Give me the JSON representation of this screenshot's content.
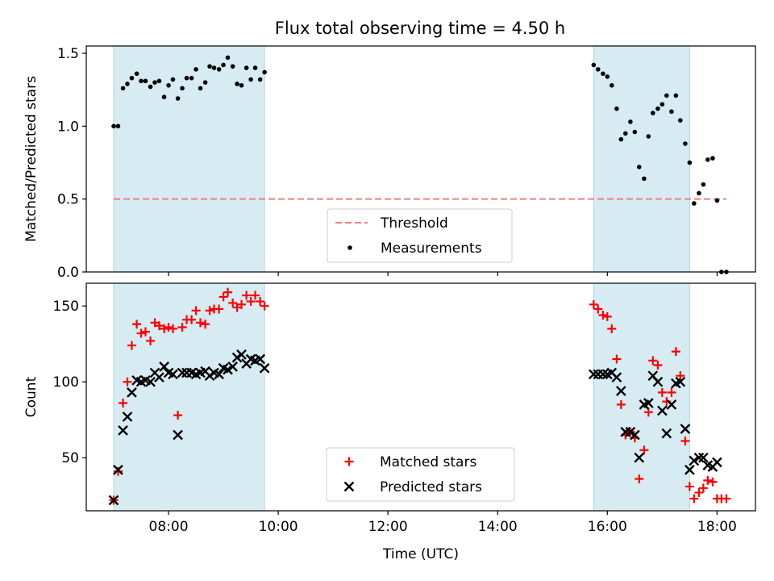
{
  "figure": {
    "title": "Flux total observing time = 4.50 h"
  },
  "colors": {
    "shade": "#add8e6",
    "threshold": "#f08080",
    "measurement": "#000000",
    "matched": "#ff0000",
    "predicted": "#000000"
  },
  "chart_data": [
    {
      "type": "scatter",
      "panel": "top",
      "xlabel": "",
      "ylabel": "Matched/Predicted stars",
      "xlim": [
        6.5,
        18.7
      ],
      "ylim": [
        0,
        1.55
      ],
      "yticks": [
        {
          "value": 0,
          "label": "0.0"
        },
        {
          "value": 0.5,
          "label": "0.5"
        },
        {
          "value": 1.0,
          "label": "1.0"
        },
        {
          "value": 1.5,
          "label": "1.5"
        }
      ],
      "shaded_spans": [
        [
          7.0,
          9.75
        ],
        [
          15.75,
          17.5
        ]
      ],
      "threshold": {
        "name": "Threshold",
        "value": 0.5,
        "x_range": [
          7.0,
          18.17
        ]
      },
      "legend": {
        "placement": "lower-center",
        "entries": [
          "Threshold",
          "Measurements"
        ]
      },
      "series": [
        {
          "name": "Measurements",
          "marker": "dot",
          "points": [
            [
              7.0,
              1.0
            ],
            [
              7.08,
              1.0
            ],
            [
              7.17,
              1.26
            ],
            [
              7.25,
              1.29
            ],
            [
              7.33,
              1.33
            ],
            [
              7.42,
              1.36
            ],
            [
              7.5,
              1.31
            ],
            [
              7.58,
              1.31
            ],
            [
              7.67,
              1.27
            ],
            [
              7.75,
              1.3
            ],
            [
              7.83,
              1.31
            ],
            [
              7.92,
              1.2
            ],
            [
              8.0,
              1.28
            ],
            [
              8.08,
              1.32
            ],
            [
              8.17,
              1.19
            ],
            [
              8.25,
              1.26
            ],
            [
              8.33,
              1.33
            ],
            [
              8.42,
              1.33
            ],
            [
              8.5,
              1.39
            ],
            [
              8.58,
              1.26
            ],
            [
              8.67,
              1.3
            ],
            [
              8.75,
              1.41
            ],
            [
              8.83,
              1.4
            ],
            [
              8.92,
              1.39
            ],
            [
              9.0,
              1.42
            ],
            [
              9.08,
              1.47
            ],
            [
              9.17,
              1.41
            ],
            [
              9.25,
              1.29
            ],
            [
              9.33,
              1.28
            ],
            [
              9.42,
              1.4
            ],
            [
              9.5,
              1.32
            ],
            [
              9.58,
              1.4
            ],
            [
              9.67,
              1.32
            ],
            [
              9.75,
              1.37
            ],
            [
              15.75,
              1.42
            ],
            [
              15.83,
              1.39
            ],
            [
              15.92,
              1.36
            ],
            [
              16.0,
              1.34
            ],
            [
              16.08,
              1.28
            ],
            [
              16.17,
              1.12
            ],
            [
              16.25,
              0.91
            ],
            [
              16.33,
              0.95
            ],
            [
              16.42,
              1.03
            ],
            [
              16.5,
              0.96
            ],
            [
              16.58,
              0.72
            ],
            [
              16.67,
              0.64
            ],
            [
              16.75,
              0.93
            ],
            [
              16.83,
              1.09
            ],
            [
              16.92,
              1.12
            ],
            [
              17.0,
              1.15
            ],
            [
              17.08,
              1.21
            ],
            [
              17.17,
              1.1
            ],
            [
              17.25,
              1.21
            ],
            [
              17.33,
              1.04
            ],
            [
              17.42,
              0.88
            ],
            [
              17.5,
              0.75
            ],
            [
              17.58,
              0.47
            ],
            [
              17.67,
              0.54
            ],
            [
              17.75,
              0.6
            ],
            [
              17.83,
              0.77
            ],
            [
              17.92,
              0.78
            ],
            [
              18.0,
              0.49
            ],
            [
              18.08,
              0.0
            ],
            [
              18.17,
              0.0
            ]
          ]
        }
      ]
    },
    {
      "type": "scatter",
      "panel": "bottom",
      "xlabel": "Time (UTC)",
      "ylabel": "Count",
      "xlim": [
        6.5,
        18.7
      ],
      "ylim": [
        15,
        165
      ],
      "xticks": [
        {
          "value": 8,
          "label": "08:00"
        },
        {
          "value": 10,
          "label": "10:00"
        },
        {
          "value": 12,
          "label": "12:00"
        },
        {
          "value": 14,
          "label": "14:00"
        },
        {
          "value": 16,
          "label": "16:00"
        },
        {
          "value": 18,
          "label": "18:00"
        }
      ],
      "yticks": [
        {
          "value": 50,
          "label": "50"
        },
        {
          "value": 100,
          "label": "100"
        },
        {
          "value": 150,
          "label": "150"
        }
      ],
      "shaded_spans": [
        [
          7.0,
          9.75
        ],
        [
          15.75,
          17.5
        ]
      ],
      "legend": {
        "placement": "lower-center",
        "entries": [
          "Matched stars",
          "Predicted stars"
        ]
      },
      "series": [
        {
          "name": "Matched stars",
          "marker": "plus",
          "points": [
            [
              7.0,
              22
            ],
            [
              7.08,
              41
            ],
            [
              7.17,
              86
            ],
            [
              7.25,
              100
            ],
            [
              7.33,
              124
            ],
            [
              7.42,
              138
            ],
            [
              7.5,
              132
            ],
            [
              7.58,
              133
            ],
            [
              7.67,
              127
            ],
            [
              7.75,
              139
            ],
            [
              7.83,
              137
            ],
            [
              7.92,
              135
            ],
            [
              8.0,
              136
            ],
            [
              8.08,
              135
            ],
            [
              8.17,
              78
            ],
            [
              8.25,
              136
            ],
            [
              8.33,
              141
            ],
            [
              8.42,
              141
            ],
            [
              8.5,
              147
            ],
            [
              8.58,
              139
            ],
            [
              8.67,
              138
            ],
            [
              8.75,
              147
            ],
            [
              8.83,
              148
            ],
            [
              8.92,
              148
            ],
            [
              9.0,
              156
            ],
            [
              9.08,
              159
            ],
            [
              9.17,
              152
            ],
            [
              9.25,
              149
            ],
            [
              9.33,
              151
            ],
            [
              9.42,
              157
            ],
            [
              9.5,
              153
            ],
            [
              9.58,
              157
            ],
            [
              9.67,
              153
            ],
            [
              9.75,
              150
            ],
            [
              15.75,
              151
            ],
            [
              15.83,
              148
            ],
            [
              15.92,
              144
            ],
            [
              16.0,
              143
            ],
            [
              16.08,
              135
            ],
            [
              16.17,
              115
            ],
            [
              16.25,
              85
            ],
            [
              16.33,
              65
            ],
            [
              16.42,
              67
            ],
            [
              16.5,
              63
            ],
            [
              16.58,
              36
            ],
            [
              16.67,
              55
            ],
            [
              16.75,
              80
            ],
            [
              16.83,
              114
            ],
            [
              16.92,
              111
            ],
            [
              17.0,
              93
            ],
            [
              17.08,
              87
            ],
            [
              17.17,
              93
            ],
            [
              17.25,
              120
            ],
            [
              17.33,
              104
            ],
            [
              17.42,
              61
            ],
            [
              17.5,
              31
            ],
            [
              17.58,
              23
            ],
            [
              17.67,
              27
            ],
            [
              17.75,
              30
            ],
            [
              17.83,
              35
            ],
            [
              17.92,
              34
            ],
            [
              18.0,
              23
            ],
            [
              18.08,
              23
            ],
            [
              18.17,
              23
            ]
          ]
        },
        {
          "name": "Predicted stars",
          "marker": "x",
          "points": [
            [
              7.0,
              22
            ],
            [
              7.08,
              42
            ],
            [
              7.17,
              68
            ],
            [
              7.25,
              77
            ],
            [
              7.33,
              93
            ],
            [
              7.42,
              101
            ],
            [
              7.5,
              100
            ],
            [
              7.58,
              101
            ],
            [
              7.67,
              100
            ],
            [
              7.75,
              106
            ],
            [
              7.83,
              103
            ],
            [
              7.92,
              110
            ],
            [
              8.0,
              106
            ],
            [
              8.08,
              105
            ],
            [
              8.17,
              65
            ],
            [
              8.25,
              106
            ],
            [
              8.33,
              106
            ],
            [
              8.42,
              106
            ],
            [
              8.5,
              105
            ],
            [
              8.58,
              106
            ],
            [
              8.67,
              107
            ],
            [
              8.75,
              104
            ],
            [
              8.83,
              106
            ],
            [
              8.92,
              105
            ],
            [
              9.0,
              109
            ],
            [
              9.08,
              108
            ],
            [
              9.17,
              110
            ],
            [
              9.25,
              116
            ],
            [
              9.33,
              118
            ],
            [
              9.42,
              112
            ],
            [
              9.5,
              115
            ],
            [
              9.58,
              114
            ],
            [
              9.67,
              115
            ],
            [
              9.75,
              109
            ],
            [
              15.75,
              105
            ],
            [
              15.83,
              105
            ],
            [
              15.92,
              105
            ],
            [
              16.0,
              105
            ],
            [
              16.08,
              106
            ],
            [
              16.17,
              103
            ],
            [
              16.25,
              94
            ],
            [
              16.33,
              67
            ],
            [
              16.42,
              67
            ],
            [
              16.5,
              65
            ],
            [
              16.58,
              50
            ],
            [
              16.67,
              85
            ],
            [
              16.75,
              86
            ],
            [
              16.83,
              104
            ],
            [
              16.92,
              100
            ],
            [
              17.0,
              81
            ],
            [
              17.08,
              66
            ],
            [
              17.17,
              85
            ],
            [
              17.25,
              99
            ],
            [
              17.33,
              100
            ],
            [
              17.42,
              69
            ],
            [
              17.5,
              42
            ],
            [
              17.58,
              48
            ],
            [
              17.67,
              50
            ],
            [
              17.75,
              50
            ],
            [
              17.83,
              45
            ],
            [
              17.92,
              44
            ],
            [
              18.0,
              47
            ]
          ]
        }
      ]
    }
  ]
}
